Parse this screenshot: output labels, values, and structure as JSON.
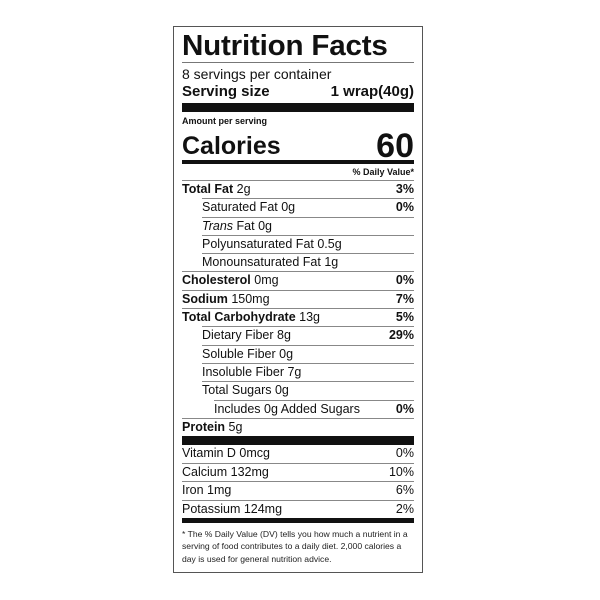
{
  "title": "Nutrition Facts",
  "servings_per_container": "8 servings per container",
  "serving_size": {
    "label": "Serving size",
    "value": "1 wrap(40g)"
  },
  "amount_per_serving": "Amount per serving",
  "calories": {
    "label": "Calories",
    "value": "60"
  },
  "daily_value_header": "% Daily Value*",
  "nutrients": [
    {
      "name": "Total Fat",
      "amount": "2g",
      "dv": "3%"
    },
    {
      "name": "Saturated Fat",
      "amount": "0g",
      "dv": "0%"
    },
    {
      "name": "Trans",
      "name_rest": "Fat",
      "amount": "0g",
      "dv": ""
    },
    {
      "name": "Polyunsaturated Fat",
      "amount": "0.5g",
      "dv": ""
    },
    {
      "name": "Monounsaturated Fat",
      "amount": "1g",
      "dv": ""
    },
    {
      "name": "Cholesterol",
      "amount": "0mg",
      "dv": "0%"
    },
    {
      "name": "Sodium",
      "amount": "150mg",
      "dv": "7%"
    },
    {
      "name": "Total Carbohydrate",
      "amount": "13g",
      "dv": "5%"
    },
    {
      "name": "Dietary Fiber",
      "amount": "8g",
      "dv": "29%"
    },
    {
      "name": "Soluble Fiber",
      "amount": "0g",
      "dv": ""
    },
    {
      "name": "Insoluble Fiber",
      "amount": "7g",
      "dv": ""
    },
    {
      "name": "Total Sugars",
      "amount": "0g",
      "dv": ""
    },
    {
      "name": "Includes 0g Added Sugars",
      "amount": "",
      "dv": "0%"
    },
    {
      "name": "Protein",
      "amount": "5g",
      "dv": ""
    }
  ],
  "vitamins": [
    {
      "name": "Vitamin D 0mcg",
      "dv": "0%"
    },
    {
      "name": "Calcium 132mg",
      "dv": "10%"
    },
    {
      "name": "Iron 1mg",
      "dv": "6%"
    },
    {
      "name": "Potassium 124mg",
      "dv": "2%"
    }
  ],
  "footnote": "* The % Daily Value (DV) tells you how much a nutrient in a serving of food contributes to a daily diet. 2,000 calories a day is used for general nutrition advice."
}
